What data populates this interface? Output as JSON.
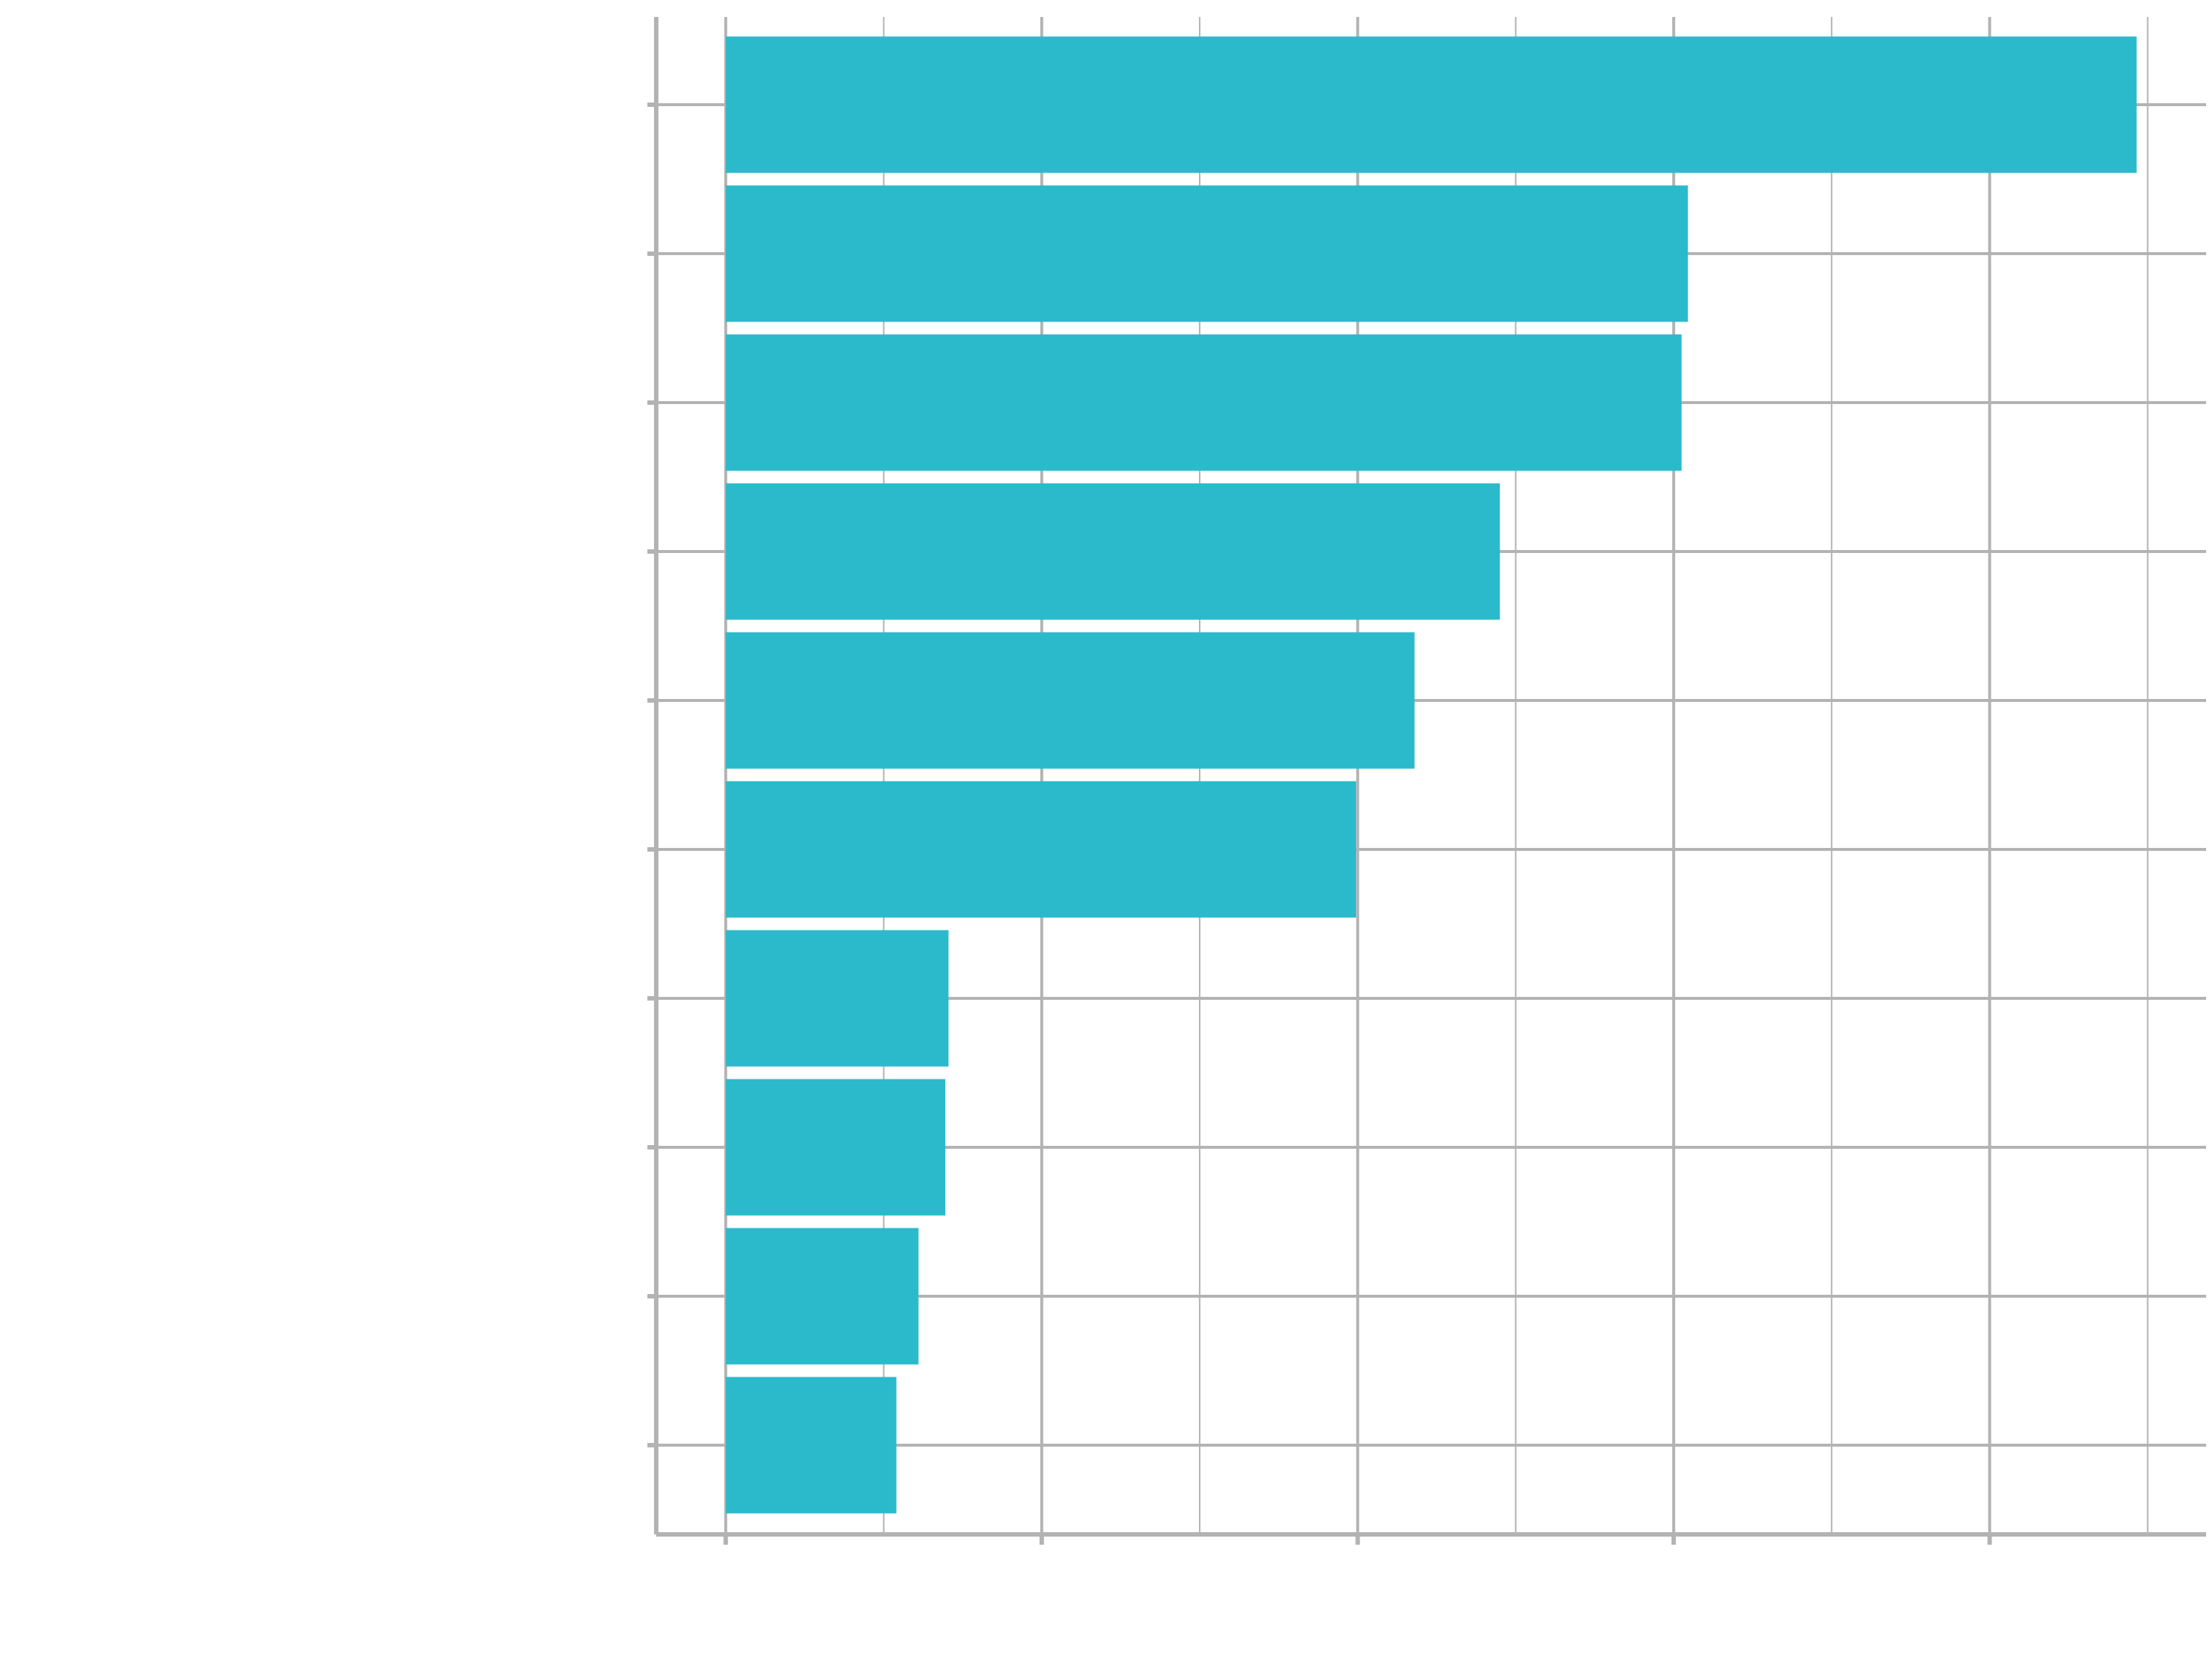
{
  "chart_data": {
    "type": "bar",
    "orientation": "horizontal",
    "categories": [
      null,
      null,
      null,
      null,
      null,
      null,
      null,
      null,
      null,
      null
    ],
    "values": [
      8.93,
      6.09,
      6.05,
      4.9,
      4.36,
      3.99,
      1.41,
      1.39,
      1.22,
      1.08
    ],
    "color": "#2bbacc",
    "xlim": [
      -0.44,
      9.37
    ],
    "xticks": [
      0,
      1,
      2,
      3,
      4,
      5,
      6,
      7,
      8,
      9
    ],
    "grid": true
  }
}
